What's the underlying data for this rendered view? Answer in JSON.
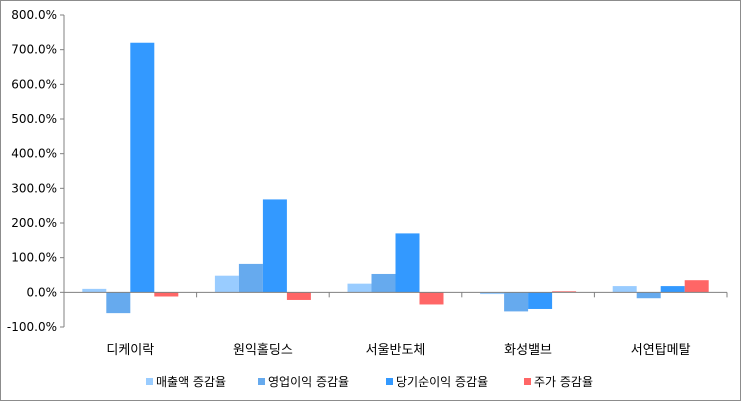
{
  "chart_data": {
    "type": "bar",
    "title": "",
    "xlabel": "",
    "ylabel": "",
    "categories": [
      "디케이락",
      "원익홀딩스",
      "서울반도체",
      "화성밸브",
      "서연탑메탈"
    ],
    "series": [
      {
        "name": "매출액 증감율",
        "color": "#99ccff",
        "values": [
          10,
          48,
          25,
          -5,
          18
        ]
      },
      {
        "name": "영업이익 증감율",
        "color": "#66aaee",
        "values": [
          -60,
          82,
          53,
          -55,
          -17
        ]
      },
      {
        "name": "당기순이익 증감율",
        "color": "#3399ff",
        "values": [
          720,
          268,
          170,
          -48,
          18
        ]
      },
      {
        "name": "주가 증감율",
        "color": "#ff6666",
        "values": [
          -12,
          -22,
          -35,
          3,
          35
        ]
      }
    ],
    "ylim": [
      -100,
      800
    ],
    "yticks": [
      -100,
      0,
      100,
      200,
      300,
      400,
      500,
      600,
      700,
      800
    ],
    "ytick_labels": [
      "-100.0%",
      "0.0%",
      "100.0%",
      "200.0%",
      "300.0%",
      "400.0%",
      "500.0%",
      "600.0%",
      "700.0%",
      "800.0%"
    ],
    "grid": false,
    "legend_position": "bottom"
  }
}
